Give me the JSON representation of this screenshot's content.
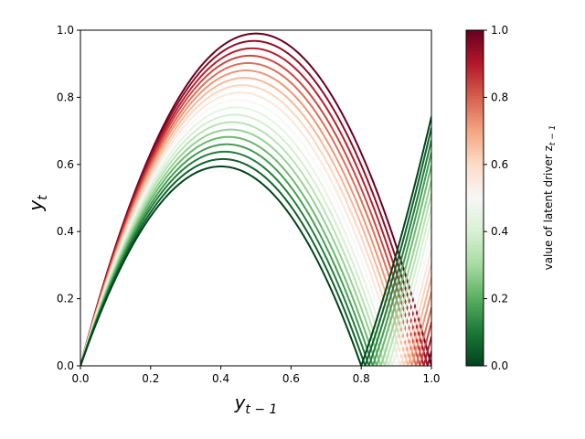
{
  "chart_data": {
    "type": "line",
    "xlabel": "y",
    "xlabel_sub": "t − 1",
    "ylabel": "y",
    "ylabel_sub": "t",
    "xlim": [
      0,
      1
    ],
    "ylim": [
      0,
      1
    ],
    "x_ticks": [
      "0.0",
      "0.2",
      "0.4",
      "0.6",
      "0.8",
      "1.0"
    ],
    "y_ticks": [
      "0.0",
      "0.2",
      "0.4",
      "0.6",
      "0.8",
      "1.0"
    ],
    "grid": false,
    "curve_family": {
      "form": "y_t = |r(z) · y_{t-1} · (1 − y_{t-1})|, with outer branch folding at zero",
      "z_values": [
        0.0,
        0.0556,
        0.1111,
        0.1667,
        0.2222,
        0.2778,
        0.3333,
        0.3889,
        0.4444,
        0.5,
        0.5556,
        0.6111,
        0.6667,
        0.7222,
        0.7778,
        0.8333,
        0.8889,
        0.9444,
        1.0
      ],
      "peak_y": [
        0.99,
        0.968,
        0.946,
        0.924,
        0.902,
        0.88,
        0.858,
        0.836,
        0.814,
        0.792,
        0.77,
        0.748,
        0.726,
        0.704,
        0.682,
        0.66,
        0.638,
        0.616,
        0.594
      ],
      "peak_x": [
        0.5,
        0.494,
        0.489,
        0.483,
        0.478,
        0.472,
        0.467,
        0.461,
        0.456,
        0.45,
        0.444,
        0.439,
        0.433,
        0.428,
        0.422,
        0.417,
        0.411,
        0.406,
        0.4
      ],
      "root_x": [
        1.0,
        0.989,
        0.978,
        0.967,
        0.956,
        0.944,
        0.933,
        0.922,
        0.911,
        0.9,
        0.889,
        0.878,
        0.867,
        0.856,
        0.844,
        0.833,
        0.822,
        0.811,
        0.8
      ]
    },
    "colorbar": {
      "label": "value of latent driver z",
      "label_sub": "t − 1",
      "ticks": [
        "0.0",
        "0.2",
        "0.4",
        "0.6",
        "0.8",
        "1.0"
      ],
      "colormap": [
        "#00441b",
        "#1b7837",
        "#5aae61",
        "#a6dba0",
        "#d9f0d3",
        "#f7f7f7",
        "#fddbc7",
        "#f4a582",
        "#d6604d",
        "#b2182b",
        "#67001f"
      ]
    }
  }
}
